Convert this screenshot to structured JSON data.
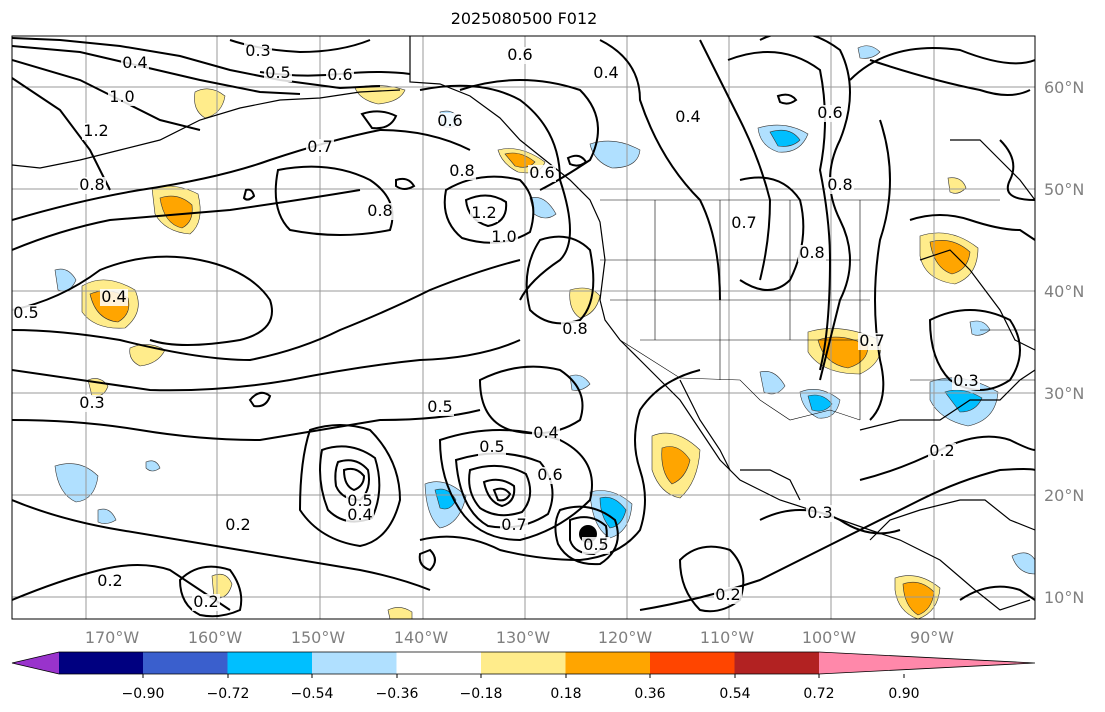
{
  "title": "2025080500 F012",
  "lat_labels": [
    "60°N",
    "50°N",
    "40°N",
    "30°N",
    "20°N",
    "10°N"
  ],
  "lon_labels": [
    "170°W",
    "160°W",
    "150°W",
    "140°W",
    "130°W",
    "120°W",
    "110°W",
    "100°W",
    "90°W"
  ],
  "colorbar": {
    "ticks": [
      "−0.90",
      "−0.72",
      "−0.54",
      "−0.36",
      "−0.18",
      "0.18",
      "0.36",
      "0.54",
      "0.72",
      "0.90"
    ],
    "colors": [
      "#9933cc",
      "#000080",
      "#3a5fcd",
      "#00bfff",
      "#b0e0ff",
      "#ffffff",
      "#ffec8b",
      "#ffa500",
      "#ff4500",
      "#b22222",
      "#ff88aa"
    ]
  },
  "contour_labels": [
    "0.3",
    "0.4",
    "0.5",
    "0.6",
    "1.0",
    "1.2",
    "0.8",
    "0.7",
    "0.6",
    "1.2",
    "1.0",
    "0.8",
    "0.8",
    "0.4",
    "0.5",
    "0.8",
    "0.6",
    "0.4",
    "0.6",
    "0.6",
    "0.4",
    "0.7",
    "0.8",
    "0.8",
    "0.7",
    "0.3",
    "0.5",
    "0.4",
    "0.5",
    "0.6",
    "0.7",
    "0.5",
    "0.4",
    "0.2",
    "0.2",
    "0.3",
    "0.2",
    "0.2",
    "0.2",
    "0.3",
    "0.5"
  ],
  "fill_colors": {
    "yellow": "#ffec8b",
    "orange": "#ffa500",
    "lightblue": "#b0e0ff",
    "blue": "#00bfff"
  }
}
